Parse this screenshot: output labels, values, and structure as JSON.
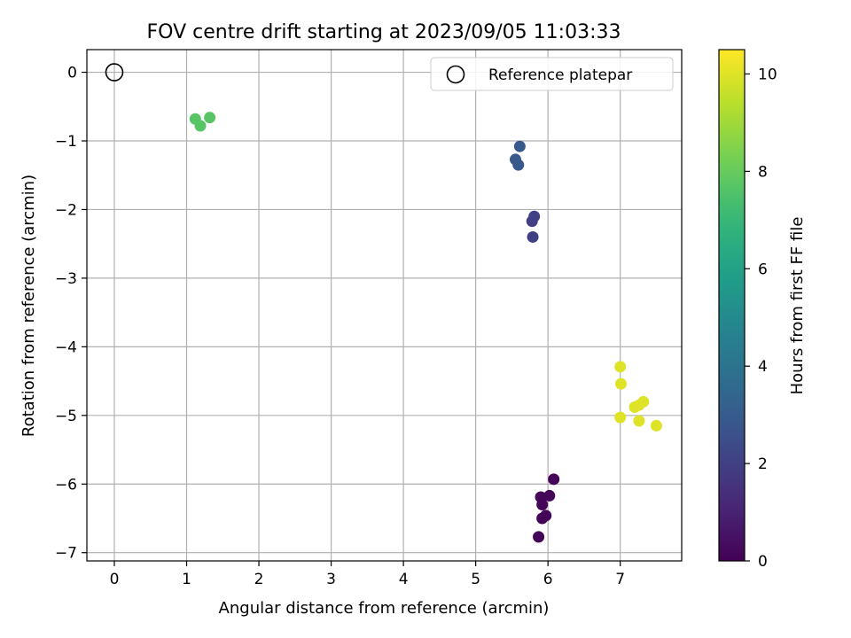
{
  "chart_data": {
    "type": "scatter",
    "title": "FOV centre drift starting at 2023/09/05 11:03:33",
    "xlabel": "Angular distance from reference (arcmin)",
    "ylabel": "Rotation from reference (arcmin)",
    "xlim": [
      -0.38,
      7.85
    ],
    "ylim": [
      -7.12,
      0.33
    ],
    "xticks": [
      0,
      1,
      2,
      3,
      4,
      5,
      6,
      7
    ],
    "yticks": [
      0,
      -1,
      -2,
      -3,
      -4,
      -5,
      -6,
      -7
    ],
    "grid": true,
    "legend": {
      "position": "top-right",
      "entries": [
        "Reference platepar"
      ]
    },
    "reference_point": {
      "x": 0,
      "y": 0
    },
    "colorbar": {
      "label": "Hours from first FF file",
      "range": [
        0,
        10.5
      ],
      "ticks": [
        0,
        2,
        4,
        6,
        8,
        10
      ],
      "colormap": "viridis"
    },
    "points": [
      {
        "x": 6.08,
        "y": -5.93,
        "c": 0.1
      },
      {
        "x": 6.02,
        "y": -6.17,
        "c": 0.1
      },
      {
        "x": 5.9,
        "y": -6.19,
        "c": 0.1
      },
      {
        "x": 5.92,
        "y": -6.3,
        "c": 0.1
      },
      {
        "x": 5.97,
        "y": -6.46,
        "c": 0.1
      },
      {
        "x": 5.92,
        "y": -6.5,
        "c": 0.1
      },
      {
        "x": 5.87,
        "y": -6.77,
        "c": 0.1
      },
      {
        "x": 5.81,
        "y": -2.1,
        "c": 2.0
      },
      {
        "x": 5.78,
        "y": -2.17,
        "c": 2.0
      },
      {
        "x": 5.79,
        "y": -2.4,
        "c": 2.0
      },
      {
        "x": 5.61,
        "y": -1.08,
        "c": 2.9
      },
      {
        "x": 5.55,
        "y": -1.27,
        "c": 2.9
      },
      {
        "x": 5.59,
        "y": -1.35,
        "c": 2.9
      },
      {
        "x": 1.12,
        "y": -0.68,
        "c": 7.7
      },
      {
        "x": 1.19,
        "y": -0.78,
        "c": 7.7
      },
      {
        "x": 1.32,
        "y": -0.66,
        "c": 7.7
      },
      {
        "x": 7.0,
        "y": -4.29,
        "c": 10.0
      },
      {
        "x": 7.01,
        "y": -4.54,
        "c": 10.0
      },
      {
        "x": 7.32,
        "y": -4.8,
        "c": 10.0
      },
      {
        "x": 7.26,
        "y": -4.85,
        "c": 10.0
      },
      {
        "x": 7.2,
        "y": -4.88,
        "c": 10.0
      },
      {
        "x": 7.0,
        "y": -5.03,
        "c": 10.0
      },
      {
        "x": 7.26,
        "y": -5.08,
        "c": 10.0
      },
      {
        "x": 7.5,
        "y": -5.15,
        "c": 10.0
      }
    ]
  }
}
